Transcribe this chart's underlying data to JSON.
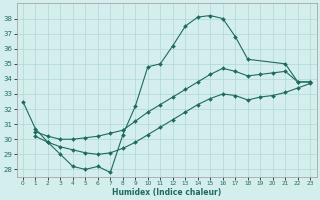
{
  "xlabel": "Humidex (Indice chaleur)",
  "xlim": [
    -0.5,
    23.5
  ],
  "ylim": [
    27.5,
    39.0
  ],
  "yticks": [
    28,
    29,
    30,
    31,
    32,
    33,
    34,
    35,
    36,
    37,
    38
  ],
  "xticks": [
    0,
    1,
    2,
    3,
    4,
    5,
    6,
    7,
    8,
    9,
    10,
    11,
    12,
    13,
    14,
    15,
    16,
    17,
    18,
    19,
    20,
    21,
    22,
    23
  ],
  "bg_color": "#d4eeed",
  "grid_color": "#b0d8d5",
  "line_color": "#1e6b5e",
  "lines": [
    {
      "x": [
        0,
        1,
        2,
        3,
        4,
        5,
        6,
        7,
        8,
        9,
        10,
        11,
        12,
        13,
        14,
        15,
        16,
        17,
        18,
        21,
        22,
        23
      ],
      "y": [
        32.5,
        30.7,
        29.8,
        29.0,
        28.2,
        28.0,
        28.2,
        27.8,
        30.3,
        32.2,
        34.8,
        35.0,
        36.2,
        37.5,
        38.1,
        38.2,
        38.0,
        36.8,
        35.3,
        35.0,
        33.8,
        33.8
      ]
    },
    {
      "x": [
        1,
        2,
        3,
        4,
        5,
        6,
        7,
        8,
        9,
        10,
        11,
        12,
        13,
        14,
        15,
        16,
        17,
        18,
        19,
        20,
        21,
        22,
        23
      ],
      "y": [
        30.5,
        30.2,
        30.0,
        30.0,
        30.1,
        30.2,
        30.4,
        30.6,
        31.2,
        31.8,
        32.3,
        32.8,
        33.3,
        33.8,
        34.3,
        34.7,
        34.5,
        34.2,
        34.3,
        34.4,
        34.5,
        33.8,
        33.8
      ]
    },
    {
      "x": [
        1,
        2,
        3,
        4,
        5,
        6,
        7,
        8,
        9,
        10,
        11,
        12,
        13,
        14,
        15,
        16,
        17,
        18,
        19,
        20,
        21,
        22,
        23
      ],
      "y": [
        30.2,
        29.8,
        29.5,
        29.3,
        29.1,
        29.0,
        29.1,
        29.4,
        29.8,
        30.3,
        30.8,
        31.3,
        31.8,
        32.3,
        32.7,
        33.0,
        32.9,
        32.6,
        32.8,
        32.9,
        33.1,
        33.4,
        33.7
      ]
    }
  ],
  "marker": "D",
  "marker_size": 2.0,
  "line_width": 0.8,
  "tick_fontsize": 5.0,
  "xlabel_fontsize": 5.5
}
